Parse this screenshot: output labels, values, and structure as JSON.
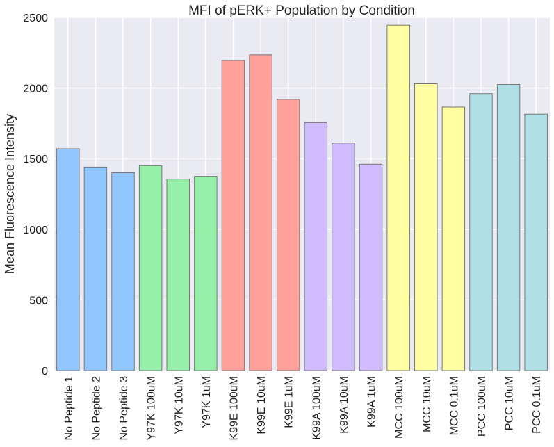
{
  "chart_data": {
    "type": "bar",
    "title": "MFI of pERK+ Population by Condition",
    "xlabel": "",
    "ylabel": "Mean Fluorescence Intensity",
    "ylim": [
      0,
      2500
    ],
    "yticks": [
      0,
      500,
      1000,
      1500,
      2000,
      2500
    ],
    "grid": true,
    "categories": [
      "No Peptide 1",
      "No Peptide 2",
      "No Peptide 3",
      "Y97K 100uM",
      "Y97K 10uM",
      "Y97K 1uM",
      "K99E 100uM",
      "K99E 10uM",
      "K99E 1uM",
      "K99A 100uM",
      "K99A 10uM",
      "K99A 1uM",
      "MCC 100uM",
      "MCC 10uM",
      "MCC 0.1uM",
      "PCC 100uM",
      "PCC 10uM",
      "PCC 0.1uM"
    ],
    "values": [
      1570,
      1440,
      1400,
      1450,
      1355,
      1375,
      2195,
      2235,
      1920,
      1755,
      1610,
      1460,
      2445,
      2030,
      1865,
      1960,
      2025,
      1815
    ],
    "colors": [
      "#92c6ff",
      "#92c6ff",
      "#92c6ff",
      "#97f0aa",
      "#97f0aa",
      "#97f0aa",
      "#ff9f9a",
      "#ff9f9a",
      "#ff9f9a",
      "#d0bbff",
      "#d0bbff",
      "#d0bbff",
      "#fffea3",
      "#fffea3",
      "#fffea3",
      "#b0e0e6",
      "#b0e0e6",
      "#b0e0e6"
    ],
    "plot_background": "#eaeaf2",
    "grid_color": "#ffffff",
    "bar_edge_color": "#777777"
  }
}
